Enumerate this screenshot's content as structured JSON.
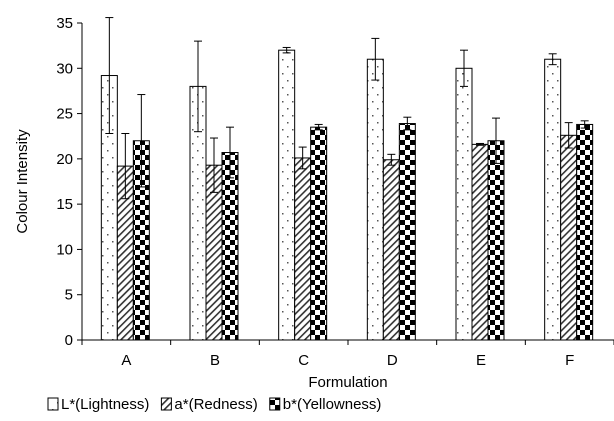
{
  "chart_data": {
    "type": "bar",
    "title": "",
    "xlabel": "Formulation",
    "ylabel": "Colour Intensity",
    "ylim": [
      0,
      35
    ],
    "yticks": [
      0,
      5,
      10,
      15,
      20,
      25,
      30,
      35
    ],
    "categories": [
      "A",
      "B",
      "C",
      "D",
      "E",
      "F"
    ],
    "grid": false,
    "legend_position": "bottom",
    "series": [
      {
        "name": "L*(Lightness)",
        "pattern": "dots",
        "values": [
          29.2,
          28.0,
          32.0,
          31.0,
          30.0,
          31.0
        ],
        "errors": [
          6.4,
          5.0,
          0.3,
          2.3,
          2.0,
          0.6
        ]
      },
      {
        "name": "a*(Redness)",
        "pattern": "diagonal",
        "values": [
          19.2,
          19.3,
          20.1,
          19.9,
          21.6,
          22.6
        ],
        "errors": [
          3.6,
          3.0,
          1.2,
          0.6,
          0.1,
          1.4
        ]
      },
      {
        "name": "b*(Yellowness)",
        "pattern": "checker",
        "values": [
          22.0,
          20.7,
          23.5,
          23.9,
          22.0,
          23.8
        ],
        "errors": [
          5.1,
          2.8,
          0.3,
          0.7,
          2.5,
          0.4
        ]
      }
    ]
  }
}
